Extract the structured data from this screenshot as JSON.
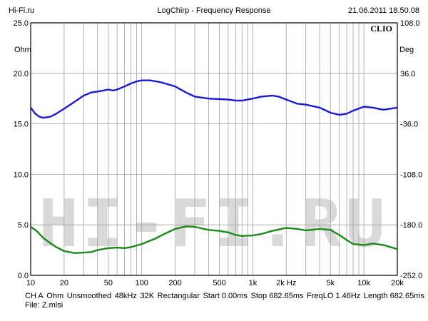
{
  "header": {
    "left": "Hi-Fi.ru",
    "title": "LogChirp - Frequency Response",
    "datetime": "21.06.2011 18.50.08"
  },
  "brand": "CLIO",
  "watermark": "HI-FI.RU",
  "units": {
    "left": "Ohm",
    "right": "Deg"
  },
  "footer": {
    "line1": [
      "CH A",
      "Ohm",
      "Unsmoothed",
      "48kHz",
      "32K",
      "Rectangular",
      "Start 0.00ms",
      "Stop 682.65ms",
      "FreqLO 1.46Hz",
      "Length 682.65ms"
    ],
    "line2": "File: Z.mlsi"
  },
  "colors": {
    "grid": "#a0a0a0",
    "series_blue": "#1a1ad6",
    "series_green": "#1a8a1a",
    "watermark": "#d9d9d9"
  },
  "chart_data": {
    "type": "line",
    "x_scale": "log",
    "xlim": [
      10,
      20000
    ],
    "ylim_left": [
      0,
      25
    ],
    "ylim_right": [
      -252,
      108
    ],
    "x_ticks": [
      {
        "v": 10,
        "label": "10"
      },
      {
        "v": 20,
        "label": "20"
      },
      {
        "v": 50,
        "label": "50"
      },
      {
        "v": 100,
        "label": "100"
      },
      {
        "v": 200,
        "label": "200"
      },
      {
        "v": 500,
        "label": "500"
      },
      {
        "v": 1000,
        "label": "1k"
      },
      {
        "v": 2000,
        "label": "2k Hz"
      },
      {
        "v": 5000,
        "label": "5k"
      },
      {
        "v": 10000,
        "label": "10k"
      },
      {
        "v": 20000,
        "label": "20k"
      }
    ],
    "y_ticks_left": [
      "25.0",
      "20.0",
      "15.0",
      "10.0",
      "5.0",
      "0.0"
    ],
    "y_ticks_right": [
      "108.0",
      "36.0",
      "-36.0",
      "-108.0",
      "-180.0",
      "-252.0"
    ],
    "grid": true,
    "series": [
      {
        "axis": "left",
        "color": "#1a1ad6",
        "points": [
          [
            10,
            16.6
          ],
          [
            11,
            16.0
          ],
          [
            12,
            15.7
          ],
          [
            13,
            15.6
          ],
          [
            15,
            15.7
          ],
          [
            17,
            16.0
          ],
          [
            20,
            16.5
          ],
          [
            25,
            17.2
          ],
          [
            30,
            17.8
          ],
          [
            35,
            18.1
          ],
          [
            40,
            18.2
          ],
          [
            45,
            18.3
          ],
          [
            50,
            18.4
          ],
          [
            55,
            18.3
          ],
          [
            60,
            18.4
          ],
          [
            70,
            18.7
          ],
          [
            80,
            19.0
          ],
          [
            90,
            19.2
          ],
          [
            100,
            19.3
          ],
          [
            120,
            19.3
          ],
          [
            150,
            19.1
          ],
          [
            200,
            18.7
          ],
          [
            250,
            18.1
          ],
          [
            300,
            17.7
          ],
          [
            400,
            17.5
          ],
          [
            500,
            17.45
          ],
          [
            600,
            17.4
          ],
          [
            700,
            17.3
          ],
          [
            800,
            17.3
          ],
          [
            1000,
            17.5
          ],
          [
            1200,
            17.7
          ],
          [
            1500,
            17.8
          ],
          [
            1700,
            17.7
          ],
          [
            2000,
            17.4
          ],
          [
            2500,
            17.0
          ],
          [
            3000,
            16.9
          ],
          [
            4000,
            16.6
          ],
          [
            5000,
            16.1
          ],
          [
            6000,
            15.9
          ],
          [
            7000,
            16.0
          ],
          [
            8000,
            16.3
          ],
          [
            10000,
            16.7
          ],
          [
            12000,
            16.6
          ],
          [
            15000,
            16.4
          ],
          [
            20000,
            16.6
          ]
        ]
      },
      {
        "axis": "left",
        "color": "#1a8a1a",
        "points": [
          [
            10,
            4.8
          ],
          [
            11,
            4.5
          ],
          [
            12,
            4.1
          ],
          [
            13,
            3.7
          ],
          [
            15,
            3.2
          ],
          [
            17,
            2.8
          ],
          [
            20,
            2.4
          ],
          [
            25,
            2.2
          ],
          [
            30,
            2.25
          ],
          [
            35,
            2.3
          ],
          [
            40,
            2.5
          ],
          [
            50,
            2.7
          ],
          [
            60,
            2.75
          ],
          [
            70,
            2.7
          ],
          [
            80,
            2.8
          ],
          [
            100,
            3.1
          ],
          [
            130,
            3.6
          ],
          [
            160,
            4.1
          ],
          [
            200,
            4.6
          ],
          [
            250,
            4.85
          ],
          [
            300,
            4.8
          ],
          [
            400,
            4.5
          ],
          [
            500,
            4.4
          ],
          [
            600,
            4.25
          ],
          [
            700,
            4.0
          ],
          [
            800,
            3.9
          ],
          [
            1000,
            3.95
          ],
          [
            1200,
            4.1
          ],
          [
            1500,
            4.4
          ],
          [
            2000,
            4.7
          ],
          [
            2500,
            4.6
          ],
          [
            3000,
            4.45
          ],
          [
            4000,
            4.6
          ],
          [
            5000,
            4.5
          ],
          [
            6000,
            4.0
          ],
          [
            7000,
            3.5
          ],
          [
            8000,
            3.1
          ],
          [
            10000,
            3.0
          ],
          [
            12000,
            3.15
          ],
          [
            15000,
            3.0
          ],
          [
            20000,
            2.6
          ]
        ]
      }
    ]
  }
}
